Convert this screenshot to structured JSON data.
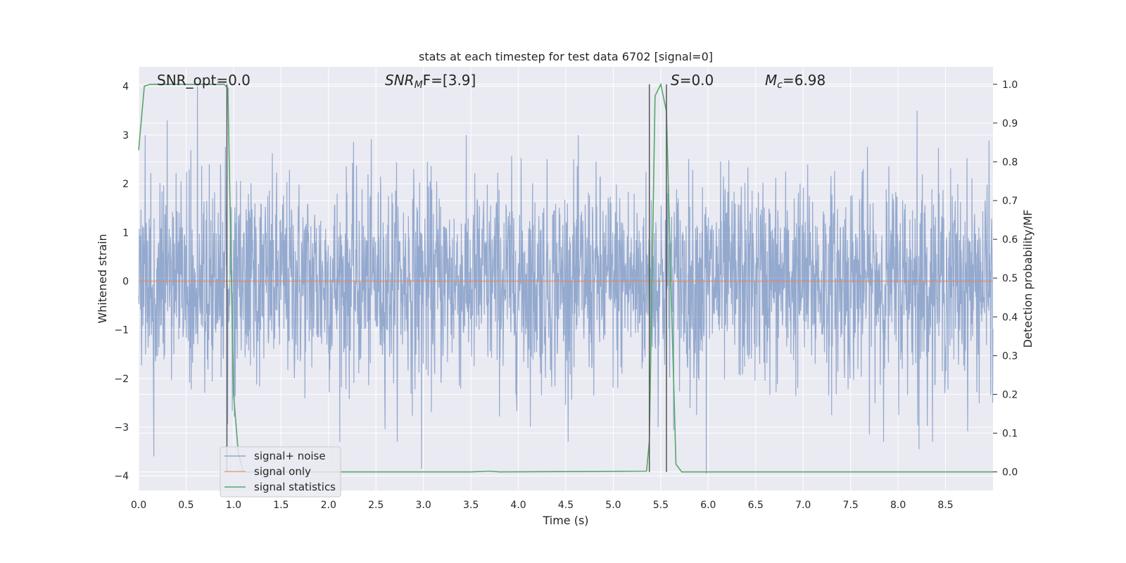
{
  "chart_data": {
    "type": "line",
    "title": "stats at each timestep for test data 6702 [signal=0]",
    "xlabel": "Time (s)",
    "ylabel": "Whitened strain",
    "y2label": "Detection probability/MF",
    "xlim": [
      0,
      9.0
    ],
    "ylim": [
      -4.3,
      4.4
    ],
    "y2lim": [
      -0.048,
      1.045
    ],
    "x_ticks": [
      "0.0",
      "0.5",
      "1.0",
      "1.5",
      "2.0",
      "2.5",
      "3.0",
      "3.5",
      "4.0",
      "4.5",
      "5.0",
      "5.5",
      "6.0",
      "6.5",
      "7.0",
      "7.5",
      "8.0",
      "8.5"
    ],
    "y_ticks": [
      "−4",
      "−3",
      "−2",
      "−1",
      "0",
      "1",
      "2",
      "3",
      "4"
    ],
    "y2_ticks": [
      "0.0",
      "0.1",
      "0.2",
      "0.3",
      "0.4",
      "0.5",
      "0.6",
      "0.7",
      "0.8",
      "0.9",
      "1.0"
    ],
    "grid": true,
    "legend_position": "lower-left",
    "annotations": {
      "snr_opt": {
        "prefix": "SNR_opt=",
        "value": "0.0"
      },
      "snr_mf": {
        "base": "SNR",
        "sub": "M",
        "suffix": "F=[3.9]"
      },
      "s": {
        "base": "S",
        "suffix": "=0.0"
      },
      "mc": {
        "base": "M",
        "sub": "c",
        "suffix": "=6.98"
      }
    },
    "series": [
      {
        "name": "signal+ noise",
        "color": "#4c72b0",
        "axis": "left",
        "description_samples": "whitened noise, ~Gaussian, std ~1.0, peaks between -3.8 and 4.0",
        "extremes": [
          [
            0.62,
            4.0
          ],
          [
            0.3,
            3.3
          ],
          [
            0.16,
            -3.6
          ],
          [
            2.98,
            -3.85
          ],
          [
            5.98,
            -3.95
          ],
          [
            8.2,
            3.5
          ],
          [
            8.22,
            -3.45
          ]
        ]
      },
      {
        "name": "signal only",
        "color": "#dd8452",
        "axis": "left",
        "x": [
          0,
          9.0
        ],
        "y": [
          0,
          0
        ]
      },
      {
        "name": "signal statistics",
        "color": "#55a868",
        "axis": "right",
        "x": [
          0.0,
          0.06,
          0.12,
          0.5,
          0.9,
          0.94,
          1.0,
          1.05,
          1.1,
          1.2,
          3.5,
          3.7,
          3.8,
          5.35,
          5.38,
          5.44,
          5.5,
          5.56,
          5.6,
          5.66,
          5.72,
          9.0
        ],
        "y": [
          0.83,
          0.995,
          1.0,
          1.0,
          1.0,
          0.99,
          0.2,
          0.05,
          0.0,
          0.0,
          0.0,
          0.002,
          0.0,
          0.002,
          0.08,
          0.97,
          1.0,
          0.93,
          0.55,
          0.02,
          0.0,
          0.0
        ]
      }
    ],
    "vertical_markers": [
      0.93,
      5.38,
      5.56
    ]
  }
}
